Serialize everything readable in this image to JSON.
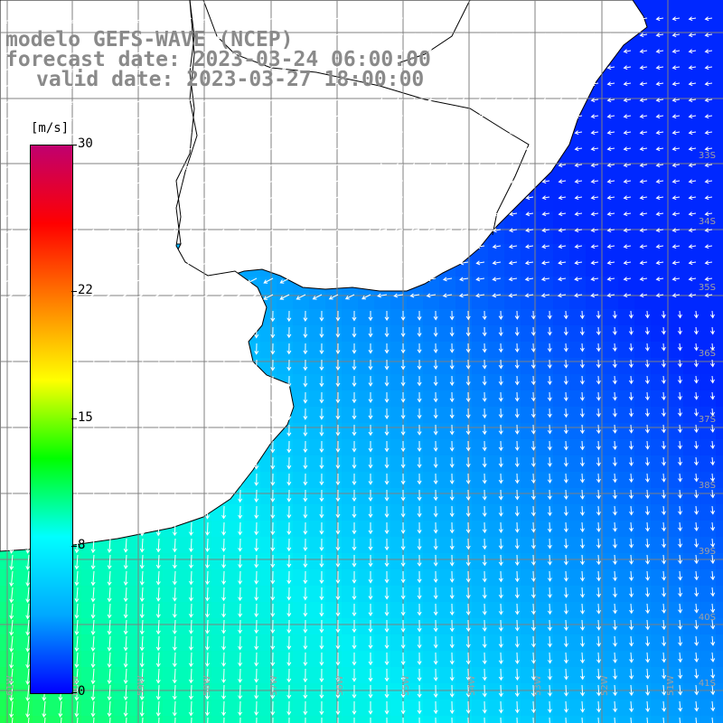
{
  "titles": {
    "line1": "modelo GEFS-WAVE (NCEP)",
    "line2": "forecast date: 2023-03-24 06:00:00",
    "line3": "valid date: 2023-03-27 18:00:00"
  },
  "colorbar": {
    "unit": "[m/s]",
    "min": 0,
    "max": 30,
    "tick_labels": [
      "30",
      "22",
      "15",
      "8",
      "0"
    ],
    "tick_values": [
      30,
      22,
      15,
      8,
      0
    ],
    "colors": [
      "#0000ff",
      "#00a8ff",
      "#00ffff",
      "#00ff00",
      "#ffff00",
      "#ff8000",
      "#ff0000",
      "#c0006f"
    ]
  },
  "map": {
    "lat_labels": [
      "33S",
      "34S",
      "35S",
      "36S",
      "37S",
      "38S",
      "39S",
      "40S",
      "41S"
    ],
    "lon_labels": [
      "61W",
      "60W",
      "59W",
      "58W",
      "57W",
      "56W",
      "55W",
      "54W",
      "53W",
      "52W",
      "51W"
    ],
    "colors": {
      "land": "#ffffff",
      "coast": "#000000",
      "grid": "#808080",
      "arrow": "#ffffff",
      "label": "#a0a0a0"
    }
  }
}
